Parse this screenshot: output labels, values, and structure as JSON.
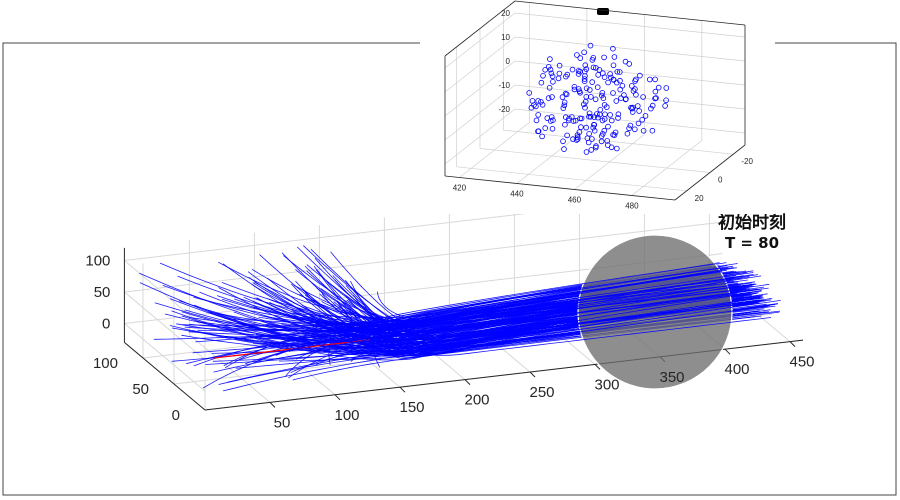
{
  "chart_data": [
    {
      "type": "line3d",
      "title": "",
      "xlabel": "",
      "ylabel": "",
      "zlabel": "",
      "xlim": [
        0,
        460
      ],
      "ylim": [
        0,
        130
      ],
      "zlim": [
        -30,
        120
      ],
      "x_ticks": [
        "50",
        "100",
        "150",
        "200",
        "250",
        "300",
        "350",
        "400",
        "450"
      ],
      "y_ticks": [
        "0",
        "50",
        "100"
      ],
      "z_ticks": [
        "0",
        "50",
        "100"
      ],
      "grid": true,
      "series": [
        {
          "description_color": "blue",
          "trajectory_count": 200,
          "start_x_range": [
            0,
            150
          ],
          "start_z_range": [
            -20,
            120
          ],
          "converge_x": 190,
          "converge_z": -15,
          "end_x": 460,
          "end_z_range": [
            -20,
            20
          ]
        },
        {
          "description_color": "red",
          "trajectory_count": 1,
          "x_range": [
            40,
            160
          ],
          "z": -15
        }
      ],
      "highlight": {
        "shape": "circle",
        "center_x": 360,
        "center_z": 0,
        "color": "#6b6b6b"
      },
      "annotation": {
        "line1": "初始时刻",
        "line2": "T = 80"
      }
    },
    {
      "type": "scatter3d",
      "title": "",
      "xlim": [
        415,
        495
      ],
      "ylim": [
        -30,
        30
      ],
      "zlim": [
        -25,
        25
      ],
      "x_ticks": [
        "420",
        "440",
        "460",
        "480"
      ],
      "y_ticks": [
        "-20",
        "0",
        "20"
      ],
      "z_ticks": [
        "20",
        "10",
        "0",
        "-10",
        "-20"
      ],
      "marker": "circle-open",
      "point_count": 200,
      "x_range": [
        430,
        480
      ],
      "y_range": [
        -20,
        20
      ],
      "z_range": [
        -22,
        22
      ]
    }
  ],
  "colors": {
    "trajectory": "#0000ff",
    "red_trajectory": "#ff0000",
    "highlight_circle": "#707070",
    "axis": "#262626",
    "grid": "#d8d8d8"
  }
}
